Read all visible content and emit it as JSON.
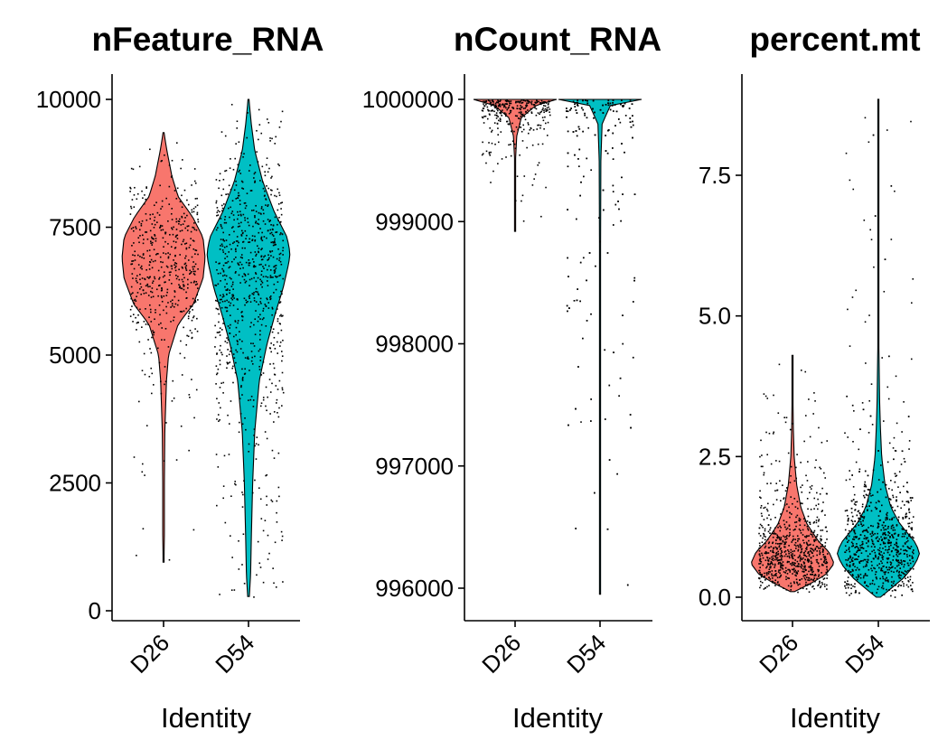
{
  "figure": {
    "x_axis_title": "Identity"
  },
  "colors": {
    "D26": "#F8766D",
    "D54": "#00BFC4",
    "points": "#000000",
    "axis": "#000000"
  },
  "chart_data": [
    {
      "type": "violin",
      "title": "nFeature_RNA",
      "xlabel": "Identity",
      "ylabel": "",
      "categories": [
        "D26",
        "D54"
      ],
      "ylim": [
        -100,
        10400
      ],
      "yticks": [
        0,
        2500,
        5000,
        7500,
        10000
      ],
      "ytick_labels": [
        "0",
        "2500",
        "5000",
        "7500",
        "10000"
      ],
      "groups": [
        {
          "name": "D26",
          "min": 950,
          "max": 9350,
          "median": 6600,
          "peak": 6900,
          "n_points": 520,
          "profile": [
            [
              950,
              0.01
            ],
            [
              1500,
              0.02
            ],
            [
              2500,
              0.02
            ],
            [
              3500,
              0.03
            ],
            [
              4500,
              0.07
            ],
            [
              5000,
              0.12
            ],
            [
              5600,
              0.35
            ],
            [
              6000,
              0.72
            ],
            [
              6500,
              0.95
            ],
            [
              6900,
              1.0
            ],
            [
              7300,
              0.95
            ],
            [
              7700,
              0.7
            ],
            [
              8100,
              0.35
            ],
            [
              8500,
              0.2
            ],
            [
              9000,
              0.08
            ],
            [
              9350,
              0.01
            ]
          ]
        },
        {
          "name": "D54",
          "min": 280,
          "max": 10000,
          "median": 6500,
          "peak": 6900,
          "n_points": 820,
          "profile": [
            [
              280,
              0.02
            ],
            [
              700,
              0.05
            ],
            [
              1500,
              0.07
            ],
            [
              2500,
              0.1
            ],
            [
              3500,
              0.15
            ],
            [
              4500,
              0.26
            ],
            [
              5200,
              0.44
            ],
            [
              5800,
              0.64
            ],
            [
              6300,
              0.83
            ],
            [
              6800,
              0.97
            ],
            [
              7000,
              1.0
            ],
            [
              7300,
              0.93
            ],
            [
              7800,
              0.62
            ],
            [
              8400,
              0.34
            ],
            [
              9000,
              0.15
            ],
            [
              9500,
              0.07
            ],
            [
              10000,
              0.01
            ]
          ]
        }
      ]
    },
    {
      "type": "violin",
      "title": "nCount_RNA",
      "xlabel": "Identity",
      "ylabel": "",
      "categories": [
        "D26",
        "D54"
      ],
      "ylim": [
        995750,
        1000200
      ],
      "yticks": [
        996000,
        997000,
        998000,
        999000,
        1000000
      ],
      "ytick_labels": [
        "996000",
        "997000",
        "998000",
        "999000",
        "1000000"
      ],
      "groups": [
        {
          "name": "D26",
          "min": 998920,
          "max": 1000000,
          "median": 1000000,
          "peak": 1000000,
          "n_points": 320,
          "profile": [
            [
              998920,
              0.0
            ],
            [
              999500,
              0.01
            ],
            [
              999700,
              0.04
            ],
            [
              999850,
              0.15
            ],
            [
              999950,
              0.5
            ],
            [
              1000000,
              1.0
            ]
          ]
        },
        {
          "name": "D54",
          "min": 995950,
          "max": 1000000,
          "median": 1000000,
          "peak": 1000000,
          "n_points": 420,
          "profile": [
            [
              995950,
              0.0
            ],
            [
              998000,
              0.005
            ],
            [
              999500,
              0.02
            ],
            [
              999800,
              0.05
            ],
            [
              999950,
              0.25
            ],
            [
              1000000,
              1.0
            ]
          ]
        }
      ]
    },
    {
      "type": "violin",
      "title": "percent.mt",
      "xlabel": "Identity",
      "ylabel": "",
      "categories": [
        "D26",
        "D54"
      ],
      "ylim": [
        -0.25,
        9.2
      ],
      "yticks": [
        0,
        2.5,
        5,
        7.5
      ],
      "ytick_labels": [
        "0.0",
        "2.5",
        "5.0",
        "7.5"
      ],
      "groups": [
        {
          "name": "D26",
          "min": 0.1,
          "max": 4.3,
          "median": 0.65,
          "peak": 0.6,
          "n_points": 780,
          "profile": [
            [
              0.1,
              0.05
            ],
            [
              0.25,
              0.45
            ],
            [
              0.4,
              0.8
            ],
            [
              0.6,
              1.0
            ],
            [
              0.8,
              0.88
            ],
            [
              1.0,
              0.62
            ],
            [
              1.3,
              0.35
            ],
            [
              1.6,
              0.2
            ],
            [
              2.0,
              0.1
            ],
            [
              2.5,
              0.04
            ],
            [
              3.0,
              0.02
            ],
            [
              3.6,
              0.01
            ],
            [
              4.3,
              0.0
            ]
          ]
        },
        {
          "name": "D54",
          "min": 0.0,
          "max": 8.85,
          "median": 0.85,
          "peak": 0.8,
          "n_points": 980,
          "profile": [
            [
              0.0,
              0.05
            ],
            [
              0.15,
              0.3
            ],
            [
              0.35,
              0.62
            ],
            [
              0.6,
              0.9
            ],
            [
              0.8,
              1.0
            ],
            [
              1.0,
              0.86
            ],
            [
              1.3,
              0.52
            ],
            [
              1.6,
              0.3
            ],
            [
              2.0,
              0.16
            ],
            [
              2.5,
              0.08
            ],
            [
              3.0,
              0.05
            ],
            [
              3.5,
              0.03
            ],
            [
              4.5,
              0.012
            ],
            [
              6.0,
              0.006
            ],
            [
              7.5,
              0.004
            ],
            [
              8.85,
              0.0
            ]
          ]
        }
      ]
    }
  ]
}
